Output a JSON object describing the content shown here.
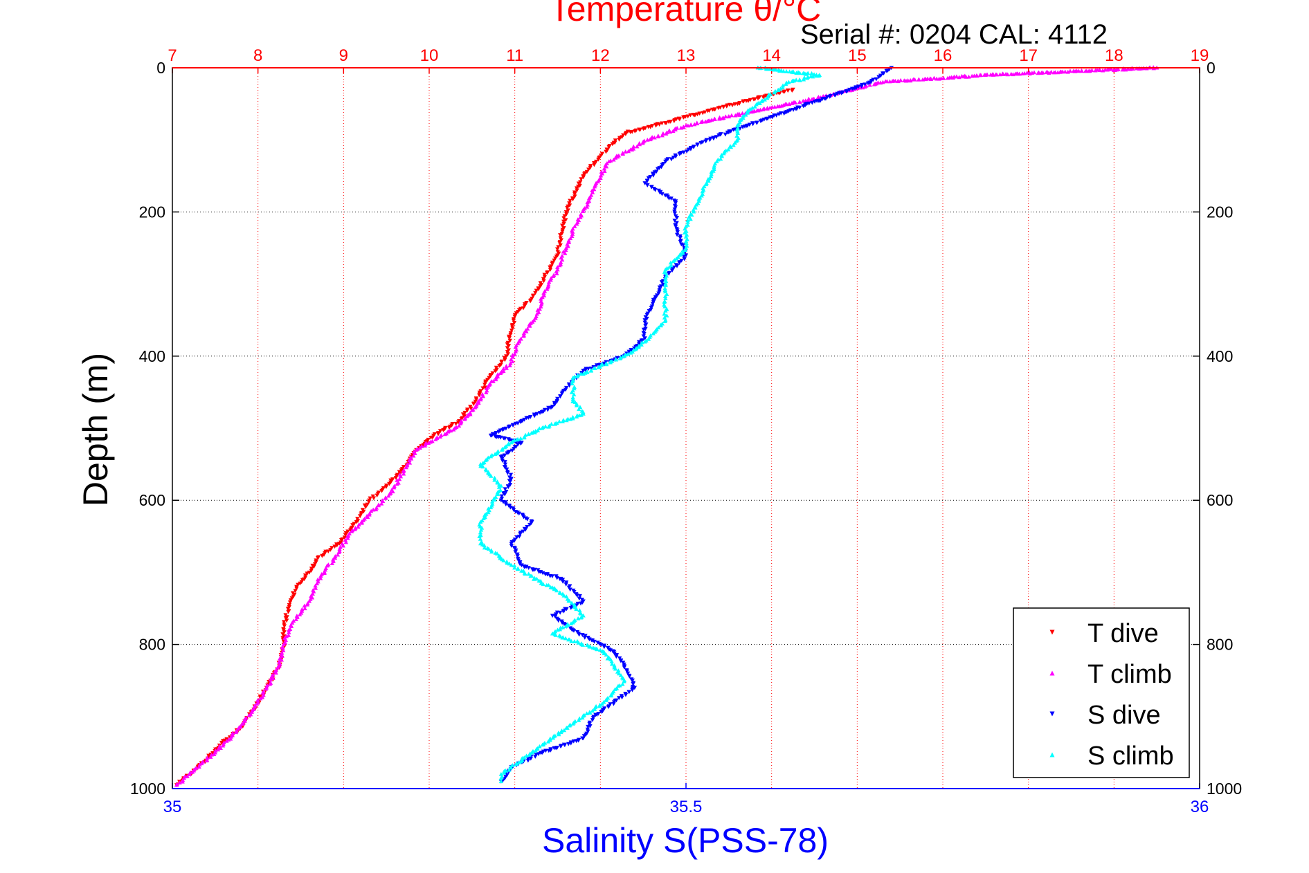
{
  "chart_data": {
    "type": "scatter",
    "title": "Temperature θ/°C",
    "annotation": "Serial #: 0204  CAL: 4112",
    "ylabel": "Depth (m)",
    "xlabel_bottom": "Salinity S(PSS-78)",
    "temperature_axis": {
      "range": [
        7,
        19
      ],
      "ticks": [
        "7",
        "8",
        "9",
        "10",
        "11",
        "12",
        "13",
        "14",
        "15",
        "16",
        "17",
        "18",
        "19"
      ]
    },
    "salinity_axis": {
      "range": [
        35,
        36
      ],
      "ticks": [
        "35",
        "35.5",
        "36"
      ]
    },
    "depth_axis": {
      "range": [
        0,
        1000
      ],
      "reversed": true,
      "ticks": [
        "0",
        "200",
        "400",
        "600",
        "800",
        "1000"
      ]
    },
    "grid": true,
    "legend_position": "bottom-right",
    "colors": {
      "temperature_axis": "#ff0000",
      "salinity_axis": "#0000ff",
      "frame": "#000000"
    },
    "series": [
      {
        "name": "T dive",
        "color": "#ff0000",
        "marker": "triangle-down",
        "axis": "temperature",
        "points": [
          [
            14.25,
            30
          ],
          [
            13.4,
            55
          ],
          [
            12.8,
            75
          ],
          [
            12.3,
            90
          ],
          [
            12.1,
            110
          ],
          [
            11.95,
            130
          ],
          [
            11.8,
            150
          ],
          [
            11.7,
            175
          ],
          [
            11.6,
            200
          ],
          [
            11.55,
            230
          ],
          [
            11.5,
            260
          ],
          [
            11.35,
            290
          ],
          [
            11.2,
            320
          ],
          [
            11.0,
            345
          ],
          [
            10.95,
            370
          ],
          [
            10.9,
            400
          ],
          [
            10.7,
            430
          ],
          [
            10.55,
            460
          ],
          [
            10.35,
            490
          ],
          [
            10.05,
            510
          ],
          [
            9.85,
            530
          ],
          [
            9.75,
            550
          ],
          [
            9.55,
            575
          ],
          [
            9.3,
            600
          ],
          [
            9.15,
            630
          ],
          [
            8.95,
            660
          ],
          [
            8.7,
            680
          ],
          [
            8.6,
            700
          ],
          [
            8.45,
            720
          ],
          [
            8.35,
            750
          ],
          [
            8.3,
            780
          ],
          [
            8.3,
            800
          ],
          [
            8.25,
            830
          ],
          [
            8.1,
            860
          ],
          [
            7.95,
            890
          ],
          [
            7.8,
            915
          ],
          [
            7.55,
            940
          ],
          [
            7.3,
            970
          ],
          [
            7.05,
            995
          ]
        ]
      },
      {
        "name": "T climb",
        "color": "#ff00ff",
        "marker": "triangle-up",
        "axis": "temperature",
        "points": [
          [
            18.5,
            0
          ],
          [
            16.5,
            10
          ],
          [
            15.3,
            20
          ],
          [
            14.6,
            40
          ],
          [
            13.8,
            60
          ],
          [
            13.0,
            80
          ],
          [
            12.55,
            100
          ],
          [
            12.1,
            130
          ],
          [
            11.95,
            160
          ],
          [
            11.85,
            190
          ],
          [
            11.7,
            220
          ],
          [
            11.6,
            250
          ],
          [
            11.5,
            280
          ],
          [
            11.35,
            310
          ],
          [
            11.25,
            345
          ],
          [
            11.05,
            380
          ],
          [
            10.95,
            410
          ],
          [
            10.7,
            440
          ],
          [
            10.55,
            470
          ],
          [
            10.3,
            500
          ],
          [
            9.85,
            530
          ],
          [
            9.7,
            560
          ],
          [
            9.55,
            590
          ],
          [
            9.3,
            620
          ],
          [
            9.05,
            650
          ],
          [
            8.9,
            680
          ],
          [
            8.7,
            710
          ],
          [
            8.6,
            740
          ],
          [
            8.4,
            770
          ],
          [
            8.3,
            800
          ],
          [
            8.25,
            830
          ],
          [
            8.1,
            860
          ],
          [
            7.95,
            890
          ],
          [
            7.75,
            920
          ],
          [
            7.5,
            950
          ],
          [
            7.25,
            975
          ],
          [
            7.05,
            995
          ]
        ]
      },
      {
        "name": "S dive",
        "color": "#0000ff",
        "marker": "triangle-down",
        "axis": "salinity",
        "points": [
          [
            35.7,
            0
          ],
          [
            35.68,
            20
          ],
          [
            35.64,
            40
          ],
          [
            35.6,
            60
          ],
          [
            35.56,
            80
          ],
          [
            35.52,
            100
          ],
          [
            35.48,
            130
          ],
          [
            35.46,
            160
          ],
          [
            35.49,
            185
          ],
          [
            35.49,
            220
          ],
          [
            35.5,
            260
          ],
          [
            35.48,
            290
          ],
          [
            35.47,
            320
          ],
          [
            35.46,
            350
          ],
          [
            35.46,
            375
          ],
          [
            35.44,
            400
          ],
          [
            35.4,
            420
          ],
          [
            35.38,
            450
          ],
          [
            35.37,
            470
          ],
          [
            35.34,
            490
          ],
          [
            35.31,
            510
          ],
          [
            35.34,
            520
          ],
          [
            35.32,
            540
          ],
          [
            35.33,
            570
          ],
          [
            35.32,
            600
          ],
          [
            35.35,
            630
          ],
          [
            35.33,
            660
          ],
          [
            35.34,
            690
          ],
          [
            35.38,
            710
          ],
          [
            35.4,
            740
          ],
          [
            35.37,
            760
          ],
          [
            35.39,
            780
          ],
          [
            35.43,
            810
          ],
          [
            35.44,
            830
          ],
          [
            35.45,
            860
          ],
          [
            35.43,
            880
          ],
          [
            35.41,
            900
          ],
          [
            35.4,
            930
          ],
          [
            35.36,
            950
          ],
          [
            35.33,
            970
          ],
          [
            35.32,
            990
          ]
        ]
      },
      {
        "name": "S climb",
        "color": "#00ffff",
        "marker": "triangle-up",
        "axis": "salinity",
        "points": [
          [
            35.57,
            0
          ],
          [
            35.63,
            10
          ],
          [
            35.6,
            20
          ],
          [
            35.58,
            40
          ],
          [
            35.56,
            60
          ],
          [
            35.55,
            80
          ],
          [
            35.55,
            100
          ],
          [
            35.53,
            130
          ],
          [
            35.52,
            160
          ],
          [
            35.51,
            190
          ],
          [
            35.5,
            220
          ],
          [
            35.5,
            250
          ],
          [
            35.48,
            280
          ],
          [
            35.48,
            320
          ],
          [
            35.48,
            350
          ],
          [
            35.46,
            380
          ],
          [
            35.44,
            400
          ],
          [
            35.39,
            430
          ],
          [
            35.39,
            460
          ],
          [
            35.4,
            480
          ],
          [
            35.36,
            500
          ],
          [
            35.33,
            520
          ],
          [
            35.3,
            550
          ],
          [
            35.32,
            580
          ],
          [
            35.31,
            610
          ],
          [
            35.3,
            630
          ],
          [
            35.3,
            660
          ],
          [
            35.33,
            690
          ],
          [
            35.38,
            730
          ],
          [
            35.4,
            760
          ],
          [
            35.37,
            785
          ],
          [
            35.42,
            810
          ],
          [
            35.44,
            850
          ],
          [
            35.42,
            880
          ],
          [
            35.39,
            910
          ],
          [
            35.35,
            950
          ],
          [
            35.32,
            980
          ],
          [
            35.32,
            990
          ]
        ]
      }
    ]
  }
}
